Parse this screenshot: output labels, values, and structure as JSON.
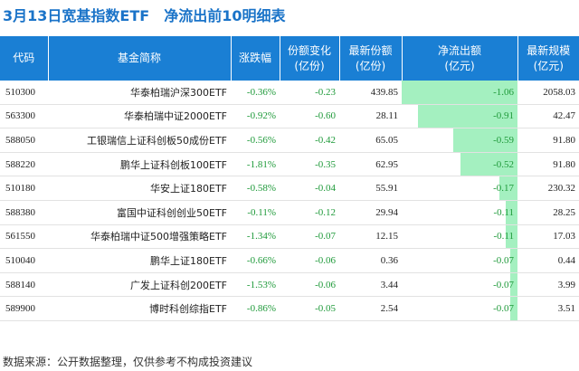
{
  "title": {
    "main": "3月13日宽基指数ETF",
    "sub": "净流出前10明细表"
  },
  "table": {
    "headers": [
      [
        "代码"
      ],
      [
        "基金简称"
      ],
      [
        "涨跌幅"
      ],
      [
        "份额变化",
        "(亿份)"
      ],
      [
        "最新份额",
        "(亿份)"
      ],
      [
        "净流出额",
        "(亿元)"
      ],
      [
        "最新规模",
        "(亿元)"
      ]
    ],
    "rows": [
      {
        "code": "510300",
        "name": "华泰柏瑞沪深300ETF",
        "change": "-0.36%",
        "share_change": "-0.23",
        "shares": "439.85",
        "outflow": "-1.06",
        "scale": "2058.03"
      },
      {
        "code": "563300",
        "name": "华泰柏瑞中证2000ETF",
        "change": "-0.92%",
        "share_change": "-0.60",
        "shares": "28.11",
        "outflow": "-0.91",
        "scale": "42.47"
      },
      {
        "code": "588050",
        "name": "工银瑞信上证科创板50成份ETF",
        "change": "-0.56%",
        "share_change": "-0.42",
        "shares": "65.05",
        "outflow": "-0.59",
        "scale": "91.80"
      },
      {
        "code": "588220",
        "name": "鹏华上证科创板100ETF",
        "change": "-1.81%",
        "share_change": "-0.35",
        "shares": "62.95",
        "outflow": "-0.52",
        "scale": "91.80"
      },
      {
        "code": "510180",
        "name": "华安上证180ETF",
        "change": "-0.58%",
        "share_change": "-0.04",
        "shares": "55.91",
        "outflow": "-0.17",
        "scale": "230.32"
      },
      {
        "code": "588380",
        "name": "富国中证科创创业50ETF",
        "change": "-0.11%",
        "share_change": "-0.12",
        "shares": "29.94",
        "outflow": "-0.11",
        "scale": "28.25"
      },
      {
        "code": "561550",
        "name": "华泰柏瑞中证500增强策略ETF",
        "change": "-1.34%",
        "share_change": "-0.07",
        "shares": "12.15",
        "outflow": "-0.11",
        "scale": "17.03"
      },
      {
        "code": "510040",
        "name": "鹏华上证180ETF",
        "change": "-0.66%",
        "share_change": "-0.06",
        "shares": "0.36",
        "outflow": "-0.07",
        "scale": "0.44"
      },
      {
        "code": "588140",
        "name": "广发上证科创200ETF",
        "change": "-1.53%",
        "share_change": "-0.06",
        "shares": "3.44",
        "outflow": "-0.07",
        "scale": "3.99"
      },
      {
        "code": "589900",
        "name": "博时科创综指ETF",
        "change": "-0.86%",
        "share_change": "-0.05",
        "shares": "2.54",
        "outflow": "-0.07",
        "scale": "3.51"
      }
    ]
  },
  "footer": "数据来源：公开数据整理，仅供参考不构成投资建议",
  "colors": {
    "header_bg": "#1a7fd4",
    "title": "#1a73c8",
    "negative": "#1f9a3a",
    "outflow_bar": "#a4f0c0"
  }
}
